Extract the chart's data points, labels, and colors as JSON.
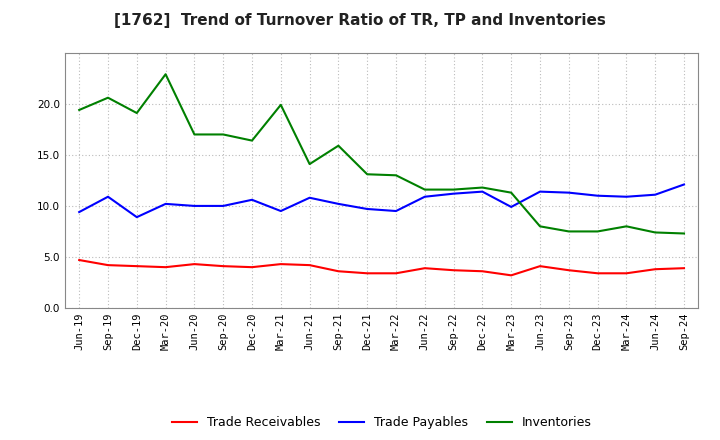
{
  "title": "[1762]  Trend of Turnover Ratio of TR, TP and Inventories",
  "x_labels": [
    "Jun-19",
    "Sep-19",
    "Dec-19",
    "Mar-20",
    "Jun-20",
    "Sep-20",
    "Dec-20",
    "Mar-21",
    "Jun-21",
    "Sep-21",
    "Dec-21",
    "Mar-22",
    "Jun-22",
    "Sep-22",
    "Dec-22",
    "Mar-23",
    "Jun-23",
    "Sep-23",
    "Dec-23",
    "Mar-24",
    "Jun-24",
    "Sep-24"
  ],
  "trade_receivables": [
    4.7,
    4.2,
    4.1,
    4.0,
    4.3,
    4.1,
    4.0,
    4.3,
    4.2,
    3.6,
    3.4,
    3.4,
    3.9,
    3.7,
    3.6,
    3.2,
    4.1,
    3.7,
    3.4,
    3.4,
    3.8,
    3.9
  ],
  "trade_payables": [
    9.4,
    10.9,
    8.9,
    10.2,
    10.0,
    10.0,
    10.6,
    9.5,
    10.8,
    10.2,
    9.7,
    9.5,
    10.9,
    11.2,
    11.4,
    9.9,
    11.4,
    11.3,
    11.0,
    10.9,
    11.1,
    12.1
  ],
  "inventories": [
    19.4,
    20.6,
    19.1,
    22.9,
    17.0,
    17.0,
    16.4,
    19.9,
    14.1,
    15.9,
    13.1,
    13.0,
    11.6,
    11.6,
    11.8,
    11.3,
    8.0,
    7.5,
    7.5,
    8.0,
    7.4,
    7.3
  ],
  "tr_color": "#FF0000",
  "tp_color": "#0000FF",
  "inv_color": "#008000",
  "tr_label": "Trade Receivables",
  "tp_label": "Trade Payables",
  "inv_label": "Inventories",
  "ylim": [
    0.0,
    25.0
  ],
  "yticks": [
    0.0,
    5.0,
    10.0,
    15.0,
    20.0
  ],
  "background_color": "#FFFFFF",
  "grid_color": "#BBBBBB",
  "title_fontsize": 11,
  "legend_fontsize": 9,
  "tick_fontsize": 7.5
}
